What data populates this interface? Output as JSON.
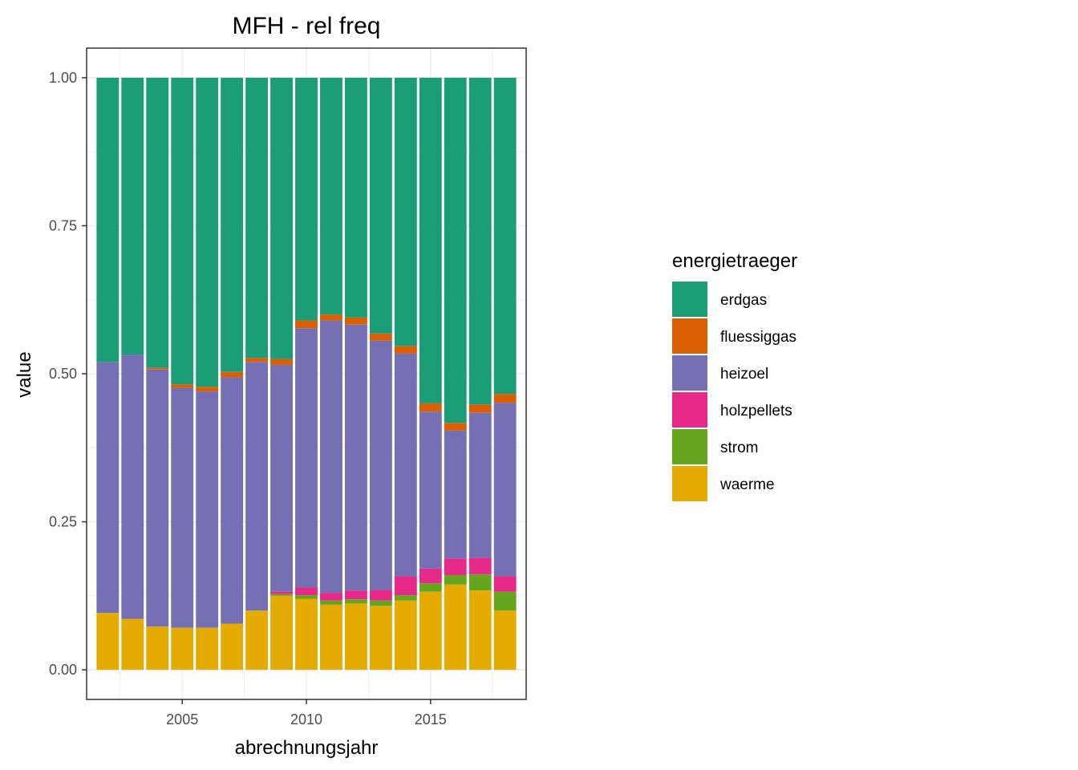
{
  "chart_data": {
    "type": "bar",
    "stacked": true,
    "title": "MFH - rel freq",
    "xlabel": "abrechnungsjahr",
    "ylabel": "value",
    "x": [
      2002,
      2003,
      2004,
      2005,
      2006,
      2007,
      2008,
      2009,
      2010,
      2011,
      2012,
      2013,
      2014,
      2015,
      2016,
      2017,
      2018
    ],
    "xlim": [
      2001.15,
      2018.85
    ],
    "ylim": [
      -0.05,
      1.05
    ],
    "x_ticks": [
      2005,
      2010,
      2015
    ],
    "x_tick_labels": [
      "2005",
      "2010",
      "2015"
    ],
    "y_ticks": [
      0,
      0.25,
      0.5,
      0.75,
      1.0
    ],
    "y_tick_labels": [
      "0.00",
      "0.25",
      "0.50",
      "0.75",
      "1.00"
    ],
    "grid": true,
    "legend_title": "energietraeger",
    "legend_position": "right",
    "series": [
      {
        "name": "erdgas",
        "color": "#1b9e77",
        "values": [
          0.48,
          0.468,
          0.49,
          0.518,
          0.522,
          0.497,
          0.473,
          0.475,
          0.41,
          0.4,
          0.405,
          0.432,
          0.453,
          0.55,
          0.583,
          0.552,
          0.534
        ]
      },
      {
        "name": "fluessiggas",
        "color": "#d95f02",
        "values": [
          0.0,
          0.0,
          0.003,
          0.006,
          0.008,
          0.009,
          0.007,
          0.01,
          0.013,
          0.01,
          0.012,
          0.012,
          0.013,
          0.014,
          0.013,
          0.014,
          0.015
        ]
      },
      {
        "name": "heizoel",
        "color": "#7570b3",
        "values": [
          0.424,
          0.446,
          0.434,
          0.405,
          0.399,
          0.416,
          0.42,
          0.383,
          0.438,
          0.46,
          0.449,
          0.421,
          0.376,
          0.265,
          0.216,
          0.245,
          0.293
        ]
      },
      {
        "name": "holzpellets",
        "color": "#e7298a",
        "values": [
          0.0,
          0.0,
          0.0,
          0.0,
          0.0,
          0.0,
          0.0,
          0.004,
          0.013,
          0.013,
          0.015,
          0.018,
          0.032,
          0.025,
          0.028,
          0.028,
          0.026
        ]
      },
      {
        "name": "strom",
        "color": "#66a61e",
        "values": [
          0.0,
          0.0,
          0.0,
          0.0,
          0.0,
          0.0,
          0.0,
          0.003,
          0.006,
          0.007,
          0.007,
          0.009,
          0.009,
          0.014,
          0.016,
          0.027,
          0.032
        ]
      },
      {
        "name": "waerme",
        "color": "#e6ab02",
        "values": [
          0.096,
          0.086,
          0.073,
          0.071,
          0.071,
          0.078,
          0.1,
          0.125,
          0.12,
          0.11,
          0.112,
          0.108,
          0.117,
          0.132,
          0.144,
          0.134,
          0.1
        ]
      }
    ]
  }
}
